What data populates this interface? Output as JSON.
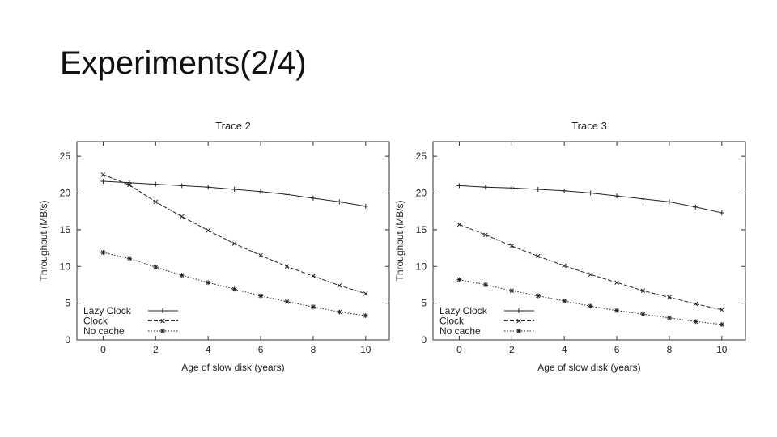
{
  "slide": {
    "title": "Experiments(2/4)"
  },
  "chart_data": [
    {
      "type": "line",
      "title": "Trace 2",
      "xlabel": "Age of slow disk (years)",
      "ylabel": "Throughput (MB/s)",
      "xlim": [
        -1,
        10.9
      ],
      "ylim": [
        0,
        27
      ],
      "xticks": [
        0,
        2,
        4,
        6,
        8,
        10
      ],
      "yticks": [
        0,
        5,
        10,
        15,
        20,
        25
      ],
      "grid": false,
      "legend_position": "bottom-left",
      "x": [
        0,
        1,
        2,
        3,
        4,
        5,
        6,
        7,
        8,
        9,
        10
      ],
      "series": [
        {
          "name": "Lazy Clock",
          "marker": "plus",
          "dash": "solid",
          "values": [
            21.6,
            21.4,
            21.2,
            21.0,
            20.8,
            20.5,
            20.2,
            19.8,
            19.3,
            18.8,
            18.2
          ]
        },
        {
          "name": "Clock",
          "marker": "x",
          "dash": "dashed",
          "values": [
            22.5,
            21.1,
            18.8,
            16.8,
            14.9,
            13.1,
            11.5,
            10.0,
            8.7,
            7.4,
            6.3
          ]
        },
        {
          "name": "No cache",
          "marker": "star",
          "dash": "dotted",
          "values": [
            11.9,
            11.1,
            9.9,
            8.8,
            7.8,
            6.9,
            6.0,
            5.2,
            4.5,
            3.8,
            3.3
          ]
        }
      ]
    },
    {
      "type": "line",
      "title": "Trace 3",
      "xlabel": "Age of slow disk (years)",
      "ylabel": "Throughput (MB/s)",
      "xlim": [
        -1,
        10.9
      ],
      "ylim": [
        0,
        27
      ],
      "xticks": [
        0,
        2,
        4,
        6,
        8,
        10
      ],
      "yticks": [
        0,
        5,
        10,
        15,
        20,
        25
      ],
      "grid": false,
      "legend_position": "bottom-left",
      "x": [
        0,
        1,
        2,
        3,
        4,
        5,
        6,
        7,
        8,
        9,
        10
      ],
      "series": [
        {
          "name": "Lazy Clock",
          "marker": "plus",
          "dash": "solid",
          "values": [
            21.0,
            20.8,
            20.7,
            20.5,
            20.3,
            20.0,
            19.6,
            19.2,
            18.8,
            18.1,
            17.3
          ]
        },
        {
          "name": "Clock",
          "marker": "x",
          "dash": "dashed",
          "values": [
            15.7,
            14.3,
            12.8,
            11.4,
            10.1,
            8.9,
            7.8,
            6.7,
            5.8,
            4.9,
            4.1
          ]
        },
        {
          "name": "No cache",
          "marker": "star",
          "dash": "dotted",
          "values": [
            8.2,
            7.5,
            6.7,
            6.0,
            5.3,
            4.6,
            4.0,
            3.5,
            3.0,
            2.5,
            2.1
          ]
        }
      ]
    }
  ]
}
